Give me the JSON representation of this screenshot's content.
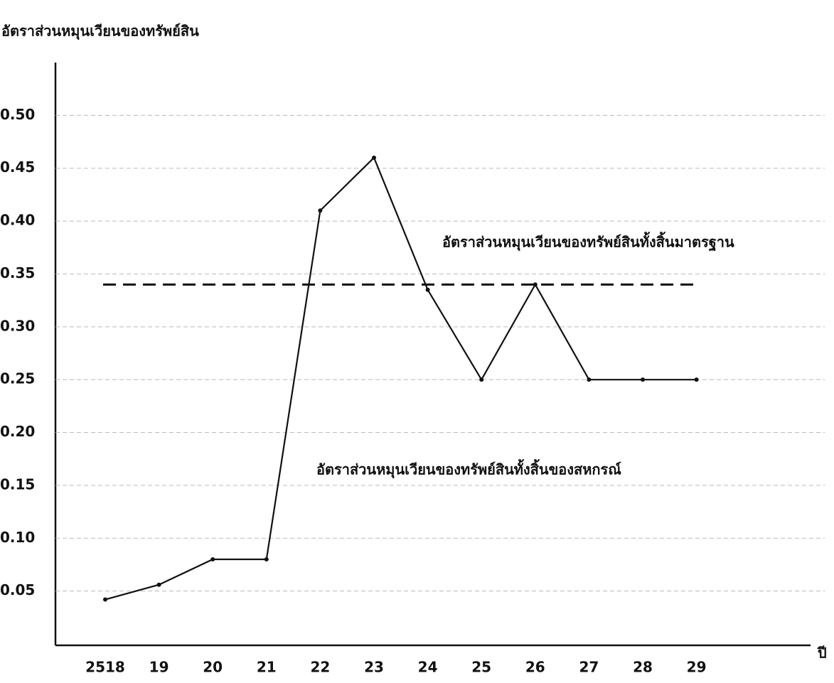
{
  "chart_data": {
    "type": "line",
    "y_label": "อัตราส่วนหมุนเวียนของทรัพย์สิน",
    "x_label": "ปี",
    "categories": [
      "2518",
      "19",
      "20",
      "21",
      "22",
      "23",
      "24",
      "25",
      "26",
      "27",
      "28",
      "29"
    ],
    "series": [
      {
        "name": "อัตราส่วนหมุนเวียนของทรัพย์สินทั้งสิ้นของสหกรณ์",
        "color": "#111111",
        "values": [
          0.042,
          0.056,
          0.08,
          0.08,
          0.41,
          0.46,
          0.335,
          0.25,
          0.34,
          0.25,
          0.25,
          0.25
        ]
      }
    ],
    "reference_line": {
      "name": "อัตราส่วนหมุนเวียนของทรัพย์สินทั้งสิ้นมาตรฐาน",
      "value": 0.34,
      "color": "#111111"
    },
    "ylim": [
      0,
      0.55
    ],
    "yticks": [
      0.05,
      {
        "value": 0.1,
        "label": "0.10"
      },
      0.15,
      {
        "value": 0.2,
        "label": "0.20"
      },
      0.25,
      {
        "value": 0.3,
        "label": "0.30"
      },
      0.35,
      {
        "value": 0.4,
        "label": "0.40"
      },
      0.45,
      {
        "value": 0.5,
        "label": "0.50"
      }
    ],
    "grid": true
  }
}
